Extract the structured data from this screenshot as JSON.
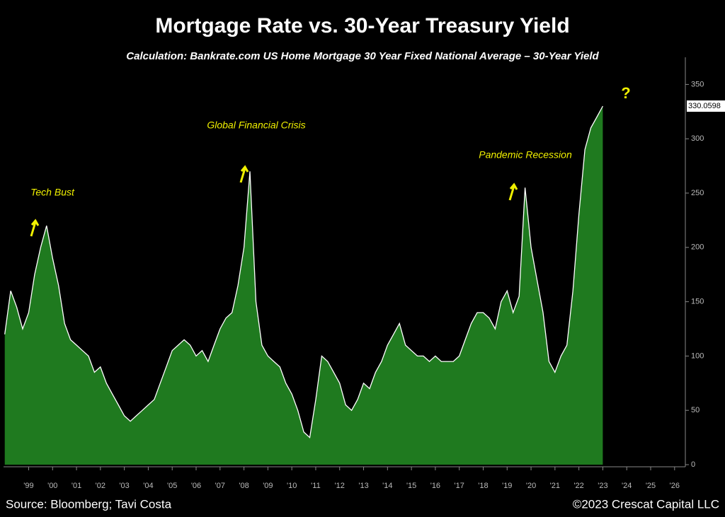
{
  "chart_data": {
    "type": "area",
    "title": "Mortgage Rate vs. 30-Year Treasury Yield",
    "subtitle": "Calculation: Bankrate.com US Home Mortgage 30 Year Fixed National Average – 30-Year Yield",
    "source": "Source: Bloomberg; Tavi Costa",
    "copyright": "©2023 Crescat Capital LLC",
    "annotations": [
      "Tech Bust",
      "Global Financial Crisis",
      "Pandemic Recession",
      "?"
    ],
    "last_value_label": "330.0598",
    "color": "#1f7a1f",
    "line_color": "#ffffff",
    "x": [
      1998.5,
      1998.75,
      1999,
      1999.25,
      1999.5,
      1999.75,
      2000,
      2000.25,
      2000.5,
      2000.75,
      2001,
      2001.25,
      2001.5,
      2001.75,
      2002,
      2002.25,
      2002.5,
      2002.75,
      2003,
      2003.25,
      2003.5,
      2003.75,
      2004,
      2004.25,
      2004.5,
      2004.75,
      2005,
      2005.25,
      2005.5,
      2005.75,
      2006,
      2006.25,
      2006.5,
      2006.75,
      2007,
      2007.25,
      2007.5,
      2007.75,
      2008,
      2008.25,
      2008.5,
      2008.75,
      2009,
      2009.25,
      2009.5,
      2009.75,
      2010,
      2010.25,
      2010.5,
      2010.75,
      2011,
      2011.25,
      2011.5,
      2011.75,
      2012,
      2012.25,
      2012.5,
      2012.75,
      2013,
      2013.25,
      2013.5,
      2013.75,
      2014,
      2014.25,
      2014.5,
      2014.75,
      2015,
      2015.25,
      2015.5,
      2015.75,
      2016,
      2016.25,
      2016.5,
      2016.75,
      2017,
      2017.25,
      2017.5,
      2017.75,
      2018,
      2018.25,
      2018.5,
      2018.75,
      2019,
      2019.25,
      2019.5,
      2019.75,
      2020,
      2020.25,
      2020.5,
      2020.75,
      2021,
      2021.25,
      2021.5,
      2021.75,
      2022,
      2022.25,
      2022.5,
      2022.75,
      2023,
      2023.25,
      2023.5
    ],
    "values": [
      120,
      160,
      145,
      125,
      140,
      175,
      200,
      220,
      190,
      165,
      130,
      115,
      110,
      105,
      100,
      85,
      90,
      75,
      65,
      55,
      45,
      40,
      45,
      50,
      55,
      60,
      75,
      90,
      105,
      110,
      115,
      110,
      100,
      105,
      95,
      110,
      125,
      135,
      140,
      165,
      200,
      270,
      150,
      110,
      100,
      95,
      90,
      75,
      65,
      50,
      30,
      25,
      60,
      100,
      95,
      85,
      75,
      55,
      50,
      60,
      75,
      70,
      85,
      95,
      110,
      120,
      130,
      110,
      105,
      100,
      100,
      95,
      100,
      95,
      95,
      95,
      100,
      115,
      130,
      140,
      140,
      135,
      125,
      150,
      160,
      140,
      155,
      255,
      200,
      170,
      140,
      95,
      85,
      100,
      110,
      160,
      230,
      290,
      310,
      320,
      330.0598
    ],
    "xlim": [
      1998.45,
      2026.95
    ],
    "xticks": [
      {
        "value": 1999.5,
        "label": "'99"
      },
      {
        "value": 2000.5,
        "label": "'00"
      },
      {
        "value": 2001.5,
        "label": "'01"
      },
      {
        "value": 2002.5,
        "label": "'02"
      },
      {
        "value": 2003.5,
        "label": "'03"
      },
      {
        "value": 2004.5,
        "label": "'04"
      },
      {
        "value": 2005.5,
        "label": "'05"
      },
      {
        "value": 2006.5,
        "label": "'06"
      },
      {
        "value": 2007.5,
        "label": "'07"
      },
      {
        "value": 2008.5,
        "label": "'08"
      },
      {
        "value": 2009.5,
        "label": "'09"
      },
      {
        "value": 2010.5,
        "label": "'10"
      },
      {
        "value": 2011.5,
        "label": "'11"
      },
      {
        "value": 2012.5,
        "label": "'12"
      },
      {
        "value": 2013.5,
        "label": "'13"
      },
      {
        "value": 2014.5,
        "label": "'14"
      },
      {
        "value": 2015.5,
        "label": "'15"
      },
      {
        "value": 2016.5,
        "label": "'16"
      },
      {
        "value": 2017.5,
        "label": "'17"
      },
      {
        "value": 2018.5,
        "label": "'18"
      },
      {
        "value": 2019.5,
        "label": "'19"
      },
      {
        "value": 2020.5,
        "label": "'20"
      },
      {
        "value": 2021.5,
        "label": "'21"
      },
      {
        "value": 2022.5,
        "label": "'22"
      },
      {
        "value": 2023.5,
        "label": "'23"
      },
      {
        "value": 2024.5,
        "label": "'24"
      },
      {
        "value": 2025.5,
        "label": "'25"
      },
      {
        "value": 2026.5,
        "label": "'26"
      }
    ],
    "ylim": [
      0,
      375
    ],
    "yticks": [
      0,
      50,
      100,
      150,
      200,
      250,
      300,
      350
    ],
    "grid": false
  }
}
